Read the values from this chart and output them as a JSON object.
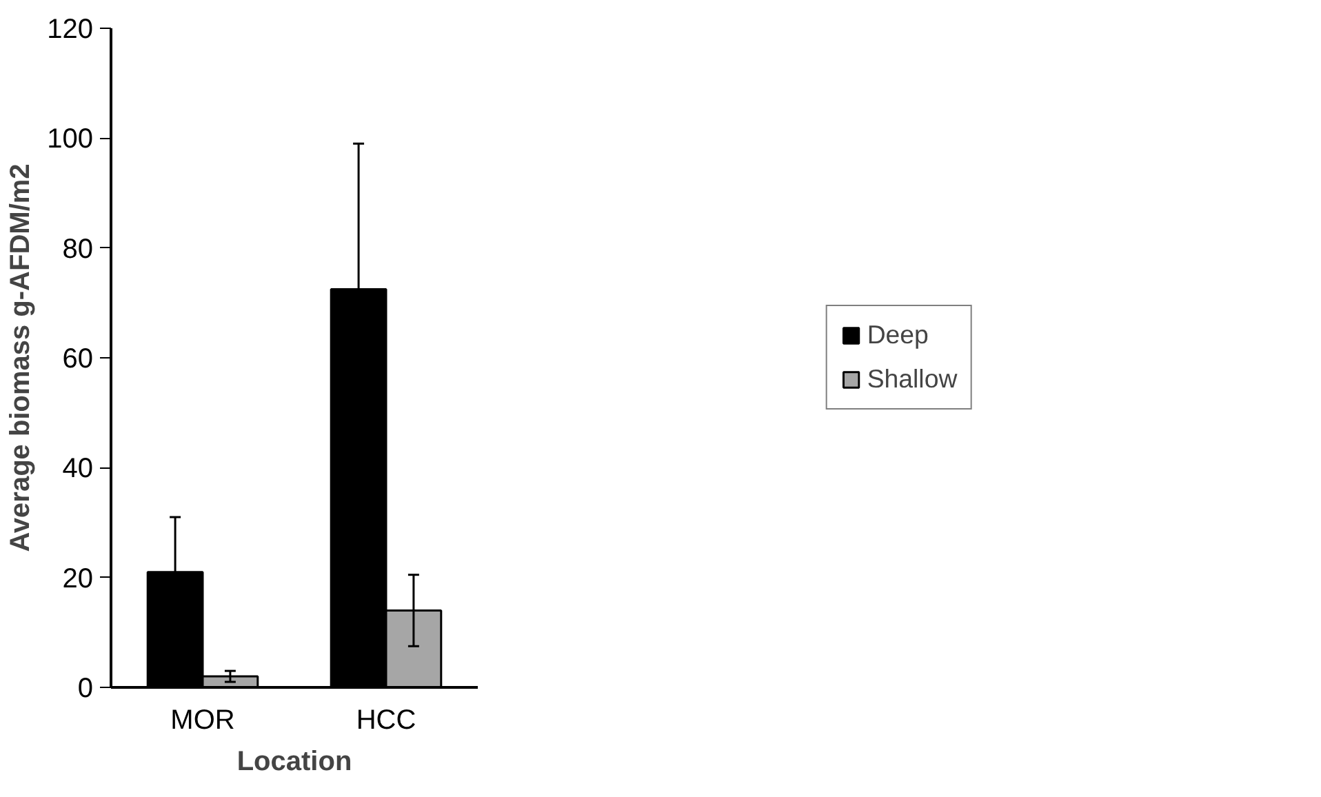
{
  "chart_data": {
    "type": "bar",
    "xlabel": "Location",
    "ylabel": "Average biomass g-AFDM/m2",
    "categories": [
      "MOR",
      "HCC"
    ],
    "series": [
      {
        "name": "Deep",
        "color": "#000000",
        "values": [
          21,
          72.5
        ],
        "errors": [
          10,
          26.5
        ]
      },
      {
        "name": "Shallow",
        "color": "#a6a6a6",
        "values": [
          2,
          14
        ],
        "errors": [
          1,
          6.5
        ]
      }
    ],
    "ylim": [
      0,
      120
    ],
    "yticks": [
      0,
      20,
      40,
      60,
      80,
      100,
      120
    ],
    "grid": false,
    "legend": "right"
  }
}
